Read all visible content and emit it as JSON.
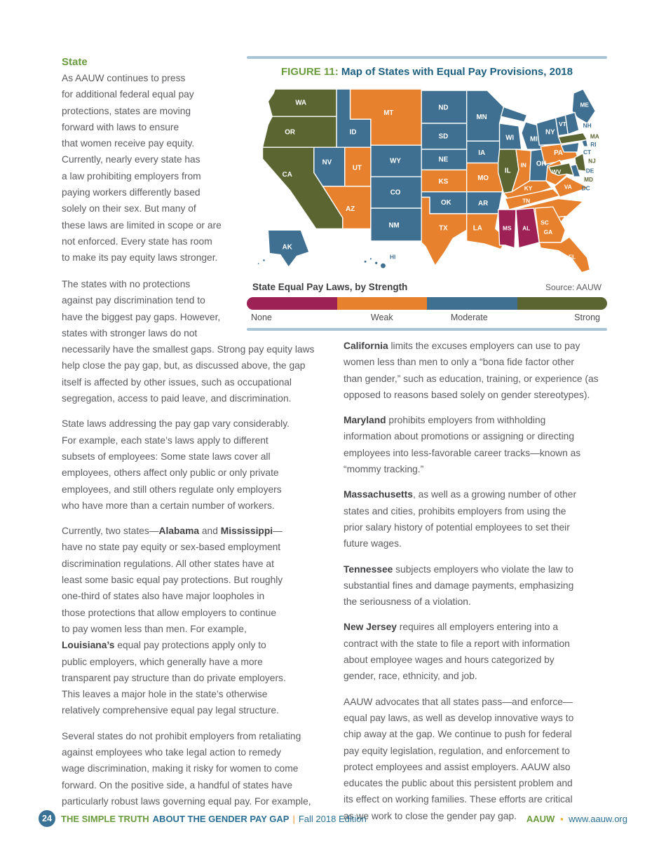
{
  "heading": "State",
  "left_column": {
    "para1": "As AAUW continues to press\nfor additional federal equal pay\nprotections, states are moving\nforward with laws to ensure\nthat women receive pay equity.\nCurrently, nearly every state has\na law prohibiting employers from\npaying workers differently based\nsolely on their sex. But many of\nthese laws are limited in scope or are\nnot enforced. Every state has room\nto make its pay equity laws stronger.",
    "para2": "The states with no protections\nagainst pay discrimination tend to\nhave the biggest pay gaps. However,\nstates with stronger laws do not\nnecessarily have the smallest gaps. Strong pay equity laws\nhelp close the pay gap, but, as discussed above, the gap\nitself is affected by other issues, such as occupational\nsegregation, access to paid leave, and discrimination.",
    "para3": "State laws addressing the pay gap vary considerably.\nFor example, each state’s laws apply to different\nsubsets of employees: Some state laws cover all\nemployees, others affect only public or only private\nemployees, and still others regulate only employers\nwho have more than a certain number of workers.",
    "para4_rich": [
      {
        "t": "Currently, two states—"
      },
      {
        "t": "Alabama",
        "b": true
      },
      {
        "t": " and "
      },
      {
        "t": "Mississippi",
        "b": true
      },
      {
        "t": "—\nhave no state pay equity or sex-based employment\ndiscrimination regulations. All other states have at\nleast some basic equal pay protections. But roughly\none-third of states also have major loopholes in\nthose protections that allow employers to continue\nto pay women less than men. For example,\n"
      },
      {
        "t": "Louisiana’s",
        "b": true
      },
      {
        "t": " equal pay protections apply only to\npublic employers, which generally have a more\ntransparent pay structure than do private employers.\nThis leaves a major hole in the state’s otherwise\nrelatively comprehensive equal pay legal structure."
      }
    ],
    "para5": "Several states do not prohibit employers from retaliating\nagainst employees who take legal action to remedy\nwage discrimination, making it risky for women to come\nforward. On the positive side, a handful of states have\nparticularly robust laws governing equal pay. For example,"
  },
  "right_column": {
    "para1_rich": [
      {
        "t": "California",
        "b": true
      },
      {
        "t": " limits the excuses employers can use to pay\nwomen less than men to only a “bona fide factor other\nthan gender,” such as education, training, or experience (as\nopposed to reasons based solely on gender stereotypes)."
      }
    ],
    "para2_rich": [
      {
        "t": "Maryland",
        "b": true
      },
      {
        "t": " prohibits employers from withholding\ninformation about promotions or assigning or directing\nemployees into less-favorable career tracks—known as\n“mommy tracking.”"
      }
    ],
    "para3_rich": [
      {
        "t": "Massachusetts",
        "b": true
      },
      {
        "t": ", as well as a growing number of other\nstates and cities, prohibits employers from using the\nprior salary history of potential employees to set their\nfuture wages."
      }
    ],
    "para4_rich": [
      {
        "t": "Tennessee",
        "b": true
      },
      {
        "t": " subjects employers who violate the law to\nsubstantial fines and damage payments, emphasizing\nthe seriousness of a violation."
      }
    ],
    "para5_rich": [
      {
        "t": "New Jersey",
        "b": true
      },
      {
        "t": " requires all employers entering into a\ncontract with the state to file a report with information\nabout employee wages and hours categorized by\ngender, race, ethnicity, and job."
      }
    ],
    "para6": "AAUW advocates that all states pass—and enforce—\nequal pay laws, as well as develop innovative ways to\nchip away at the gap. We continue to push for federal\npay equity legislation, regulation, and enforcement to\nprotect employees and assist employers. AAUW also\neducates the public about this persistent problem and\nits effect on working families. These efforts are critical\nas we work to close the gender pay gap."
  },
  "figure": {
    "title_prefix": "FIGURE 11:",
    "title_rest": " Map of States with Equal Pay Provisions, 2018",
    "legend_title": "State Equal Pay Laws, by Strength",
    "source": "Source: AAUW",
    "legend_colors": {
      "none": "#9e2155",
      "weak": "#e8812d",
      "moderate": "#3f7092",
      "strong": "#5b6532"
    },
    "legend": [
      {
        "label": "None",
        "color": "#9e2155"
      },
      {
        "label": "Weak",
        "color": "#e8812d"
      },
      {
        "label": "Moderate",
        "color": "#3f7092"
      },
      {
        "label": "Strong",
        "color": "#5b6532"
      }
    ],
    "map": {
      "states": {
        "WA": "strong",
        "OR": "strong",
        "CA": "strong",
        "IL": "strong",
        "MA": "strong",
        "NJ": "strong",
        "MD": "strong",
        "MT": "weak",
        "UT": "weak",
        "AZ": "weak",
        "KS": "weak",
        "TX": "weak",
        "MO": "weak",
        "IN": "weak",
        "PA": "weak",
        "WV": "weak",
        "VA": "weak",
        "KY": "weak",
        "TN": "weak",
        "NC": "weak",
        "SC": "weak",
        "GA": "weak",
        "FL": "weak",
        "LA": "weak",
        "MS": "none",
        "AL": "none",
        "ID": "moderate",
        "NV": "moderate",
        "WY": "moderate",
        "CO": "moderate",
        "NM": "moderate",
        "ND": "moderate",
        "SD": "moderate",
        "NE": "moderate",
        "OK": "moderate",
        "MN": "moderate",
        "IA": "moderate",
        "AR": "moderate",
        "WI": "moderate",
        "MI": "moderate",
        "OH": "moderate",
        "NY": "moderate",
        "VT": "moderate",
        "ME": "moderate",
        "NH": "moderate",
        "RI": "moderate",
        "CT": "moderate",
        "DE": "moderate",
        "AK": "moderate",
        "HI": "moderate",
        "DC": "moderate"
      }
    }
  },
  "footer": {
    "page_number": "24",
    "title_bold": "THE SIMPLE TRUTH",
    "title_rest": "ABOUT THE GENDER PAY GAP",
    "divider": "|",
    "edition": "Fall 2018 Edition",
    "right_org": "AAUW",
    "right_bullet": "▪",
    "right_url": "www.aauw.org"
  }
}
